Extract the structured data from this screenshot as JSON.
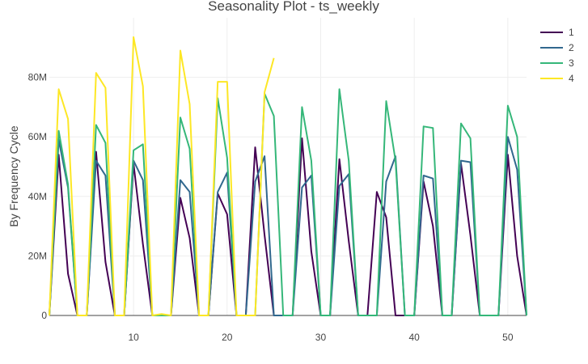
{
  "chart_data": {
    "type": "line",
    "title": "Seasonality Plot - ts_weekly",
    "xlabel": "",
    "ylabel": "By Frequency Cycle",
    "xlim": [
      1,
      52
    ],
    "ylim": [
      0,
      100000000
    ],
    "x_ticks": [
      10,
      20,
      30,
      40,
      50
    ],
    "x_tick_labels": [
      "10",
      "20",
      "30",
      "40",
      "50"
    ],
    "y_ticks": [
      0,
      20000000,
      40000000,
      60000000,
      80000000
    ],
    "y_tick_labels": [
      "0",
      "20M",
      "40M",
      "60M",
      "80M"
    ],
    "grid": true,
    "legend_position": "top-right",
    "series": [
      {
        "name": "1",
        "color": "#440154",
        "x": [
          1,
          2,
          3,
          4,
          5,
          6,
          7,
          8,
          9,
          10,
          11,
          12,
          13,
          14,
          15,
          16,
          17,
          18,
          19,
          20,
          21,
          22,
          23,
          24,
          25,
          26,
          27,
          28,
          29,
          30,
          31,
          32,
          33,
          34,
          35,
          36,
          37,
          38,
          39,
          40,
          41,
          42,
          43,
          44,
          45,
          46,
          47,
          48,
          49,
          50,
          51,
          52
        ],
        "values": [
          0,
          54000000,
          14000000,
          0,
          0,
          55000000,
          18000000,
          0,
          0,
          51000000,
          24000000,
          0,
          0,
          0,
          39500000,
          26000000,
          0,
          0,
          41000000,
          34000000,
          0,
          0,
          56500000,
          27000000,
          0,
          0,
          0,
          59500000,
          21500000,
          0,
          0,
          52500000,
          25000000,
          0,
          0,
          41500000,
          33000000,
          0,
          0,
          0,
          45000000,
          30000000,
          0,
          0,
          51000000,
          27000000,
          0,
          0,
          0,
          54000000,
          20000000,
          0
        ]
      },
      {
        "name": "2",
        "color": "#31688e",
        "x": [
          1,
          2,
          3,
          4,
          5,
          6,
          7,
          8,
          9,
          10,
          11,
          12,
          13,
          14,
          15,
          16,
          17,
          18,
          19,
          20,
          21,
          22,
          23,
          24,
          25,
          26,
          27,
          28,
          29,
          30,
          31,
          32,
          33,
          34,
          35,
          36,
          37,
          38,
          39,
          40,
          41,
          42,
          43,
          44,
          45,
          46,
          47,
          48,
          49,
          50,
          51,
          52
        ],
        "values": [
          0,
          59000000,
          43000000,
          0,
          0,
          52000000,
          47000000,
          0,
          0,
          52000000,
          45500000,
          0,
          0,
          0,
          45500000,
          41500000,
          0,
          0,
          41500000,
          48000000,
          0,
          0,
          45000000,
          53500000,
          0,
          0,
          0,
          43000000,
          47000000,
          0,
          0,
          43500000,
          47500000,
          0,
          0,
          0,
          45000000,
          53500000,
          0,
          0,
          47000000,
          46000000,
          0,
          0,
          52000000,
          51500000,
          0,
          0,
          0,
          60000000,
          49000000,
          0
        ]
      },
      {
        "name": "3",
        "color": "#35b779",
        "x": [
          1,
          2,
          3,
          4,
          5,
          6,
          7,
          8,
          9,
          10,
          11,
          12,
          13,
          14,
          15,
          16,
          17,
          18,
          19,
          20,
          21,
          22,
          23,
          24,
          25,
          26,
          27,
          28,
          29,
          30,
          31,
          32,
          33,
          34,
          35,
          36,
          37,
          38,
          39,
          40,
          41,
          42,
          43,
          44,
          45,
          46,
          47,
          48,
          49,
          50,
          51,
          52
        ],
        "values": [
          0,
          62000000,
          44000000,
          0,
          0,
          64000000,
          58000000,
          0,
          0,
          55500000,
          57500000,
          0,
          0,
          0,
          66500000,
          56000000,
          0,
          0,
          73000000,
          53000000,
          0,
          0,
          0,
          74500000,
          67000000,
          0,
          0,
          70000000,
          52000000,
          0,
          0,
          76000000,
          52000000,
          0,
          0,
          0,
          72000000,
          52000000,
          0,
          0,
          63500000,
          63000000,
          0,
          0,
          64500000,
          59500000,
          0,
          0,
          0,
          70500000,
          60000000,
          0
        ]
      },
      {
        "name": "4",
        "color": "#fde725",
        "x": [
          1,
          2,
          3,
          4,
          5,
          6,
          7,
          8,
          9,
          10,
          11,
          12,
          13,
          14,
          15,
          16,
          17,
          18,
          19,
          20,
          21,
          22,
          23,
          24,
          25
        ],
        "values": [
          0,
          76000000,
          66000000,
          0,
          0,
          81500000,
          76500000,
          0,
          0,
          93500000,
          77000000,
          0,
          500000,
          0,
          89000000,
          71000000,
          0,
          0,
          78500000,
          78500000,
          0,
          0,
          0,
          75000000,
          86500000
        ]
      }
    ]
  }
}
